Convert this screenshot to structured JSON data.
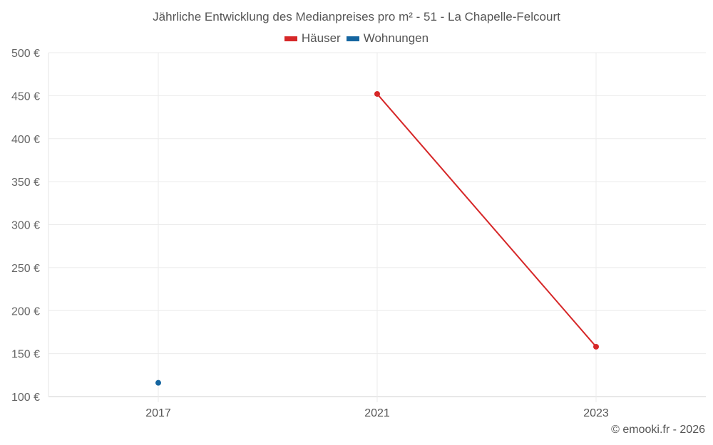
{
  "chart_data": {
    "type": "line",
    "title": "Jährliche Entwicklung des Medianpreises pro m² - 51 - La Chapelle-Felcourt",
    "xlabel": "",
    "ylabel": "",
    "categories": [
      "2017",
      "2021",
      "2023"
    ],
    "series": [
      {
        "name": "Häuser",
        "color": "#d62728",
        "values": [
          null,
          452,
          158
        ]
      },
      {
        "name": "Wohnungen",
        "color": "#1565a0",
        "values": [
          116,
          null,
          null
        ]
      }
    ],
    "ylim": [
      100,
      500
    ],
    "yticks": [
      "100 €",
      "150 €",
      "200 €",
      "250 €",
      "300 €",
      "350 €",
      "400 €",
      "450 €",
      "500 €"
    ],
    "grid": true,
    "legend_position": "top"
  },
  "title": "Jährliche Entwicklung des Medianpreises pro m² - 51 - La Chapelle-Felcourt",
  "legend": [
    {
      "label": "Häuser",
      "color": "#d62728"
    },
    {
      "label": "Wohnungen",
      "color": "#1565a0"
    }
  ],
  "credit": "© emooki.fr - 2026"
}
